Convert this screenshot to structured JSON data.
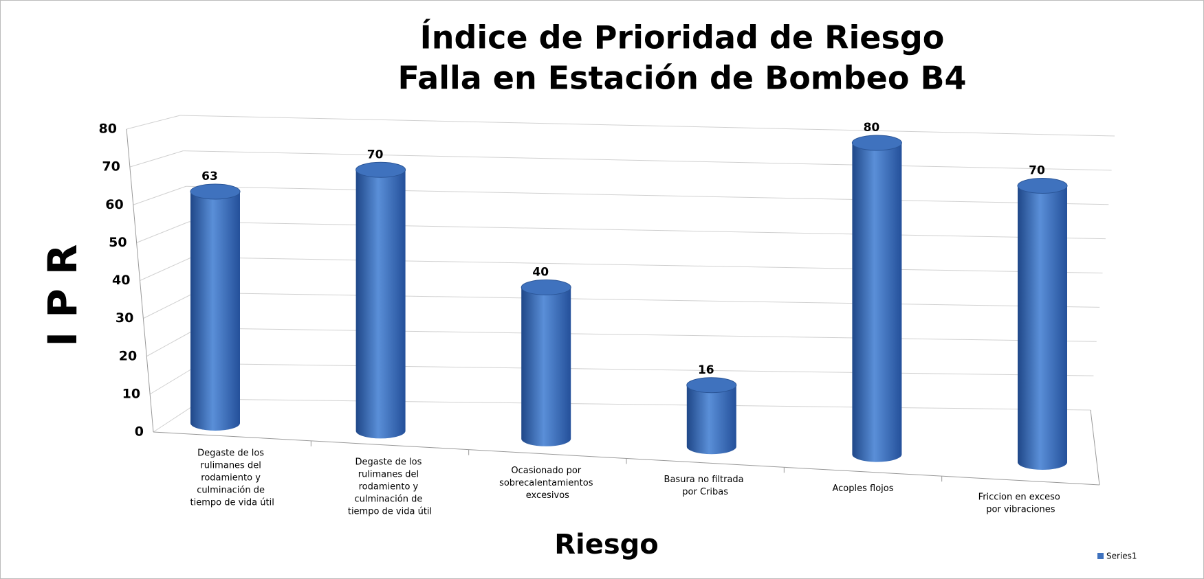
{
  "chart_data": {
    "type": "cylinder",
    "title": "Índice de Prioridad de Riesgo",
    "subtitle": "Falla en Estación de Bombeo B4",
    "y_label": "I P R",
    "x_label": "Riesgo",
    "categories": [
      "Degaste de los rulimanes del rodamiento y culminación de tiempo de vida útil",
      "Degaste de los rulimanes del rodamiento y culminación de tiempo de vida útil",
      "Ocasionado por sobrecalentamientos excesivos",
      "Basura no filtrada por Cribas",
      "Acoples flojos",
      "Friccion en exceso por vibraciones"
    ],
    "series": [
      {
        "name": "Series1",
        "color": "#3f72be",
        "values": [
          63,
          70,
          40,
          16,
          80,
          70
        ]
      }
    ],
    "ylim": [
      0,
      80
    ],
    "yticks": [
      0,
      10,
      20,
      30,
      40,
      50,
      60,
      70,
      80
    ],
    "grid": true,
    "legend": "bottom-right"
  }
}
